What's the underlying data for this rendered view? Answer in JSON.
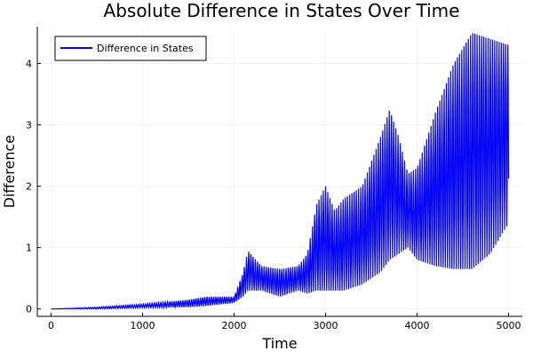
{
  "chart_data": {
    "type": "line",
    "title": "Absolute Difference in States Over Time",
    "xlabel": "Time",
    "ylabel": "Difference",
    "xlim": [
      -150,
      5150
    ],
    "ylim": [
      -0.12,
      4.6
    ],
    "xticks": [
      0,
      1000,
      2000,
      3000,
      4000,
      5000
    ],
    "xtick_labels": [
      "0",
      "1000",
      "2000",
      "3000",
      "4000",
      "5000"
    ],
    "yticks": [
      0,
      1,
      2,
      3,
      4
    ],
    "ytick_labels": [
      "0",
      "1",
      "2",
      "3",
      "4"
    ],
    "grid": true,
    "legend_position": "top-left",
    "series": [
      {
        "name": "Difference in States",
        "color": "#0000ff",
        "note_envelope": "oscillating signal; upper/lower envelope sampled over time",
        "time": [
          0,
          500,
          1000,
          1500,
          1700,
          2000,
          2100,
          2150,
          2300,
          2500,
          2700,
          2800,
          2900,
          3000,
          3100,
          3200,
          3400,
          3600,
          3700,
          3800,
          3900,
          4000,
          4200,
          4400,
          4600,
          4800,
          5000
        ],
        "upper": [
          0,
          0.03,
          0.08,
          0.15,
          0.2,
          0.2,
          0.6,
          0.95,
          0.7,
          0.65,
          0.7,
          0.9,
          1.7,
          2.0,
          1.6,
          1.8,
          2.0,
          2.8,
          3.25,
          2.8,
          2.2,
          2.3,
          3.2,
          4.0,
          4.5,
          4.4,
          4.3
        ],
        "lower": [
          0,
          0,
          0.02,
          0.03,
          0.05,
          0.1,
          0.2,
          0.3,
          0.3,
          0.2,
          0.3,
          0.25,
          0.3,
          0.3,
          0.3,
          0.3,
          0.4,
          0.6,
          0.8,
          0.9,
          1.0,
          0.8,
          0.7,
          0.65,
          0.65,
          0.9,
          1.4
        ]
      }
    ]
  }
}
